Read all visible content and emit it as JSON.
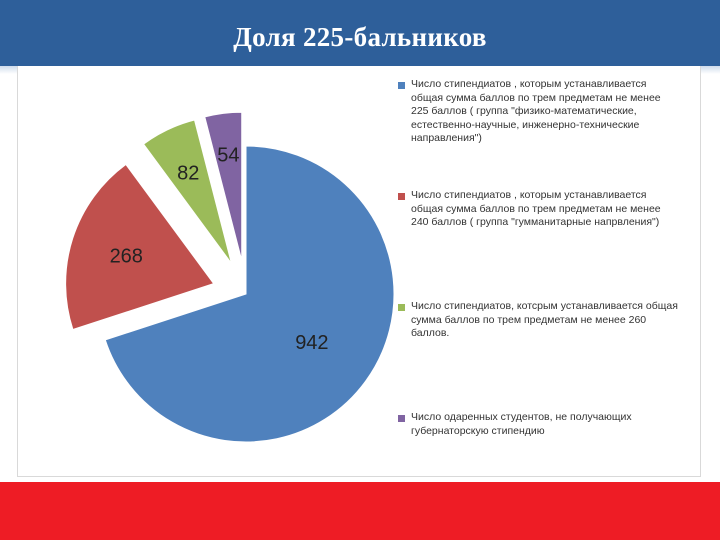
{
  "header": {
    "title": "Доля 225-бальников"
  },
  "chart_data": {
    "type": "pie",
    "categories": [
      "Число стипендиатов , которым устанавливается общая сумма баллов по трем предметам не менее 225 баллов ( группа \"физико-математические, естественно-научные, инженерно-технические направления\")",
      "Число стипендиатов , которым устанавливается общая сумма баллов по трем предметам не менее 240 баллов ( группа \"гумманитарные напрвления\")",
      "Число стипендиатов, котсрым устанавливается общая сумма баллов по трем предметам не менее 260 баллов.",
      "Число одаренных студентов, не получающих губернаторскую стипендию"
    ],
    "values": [
      942,
      268,
      82,
      54
    ],
    "data_labels": [
      "942",
      "268",
      "82",
      "54"
    ],
    "colors": [
      "#4f81bd",
      "#c0504d",
      "#9bbb59",
      "#8064a2"
    ],
    "exploded": [
      false,
      true,
      true,
      true
    ],
    "legend_position": "right"
  }
}
